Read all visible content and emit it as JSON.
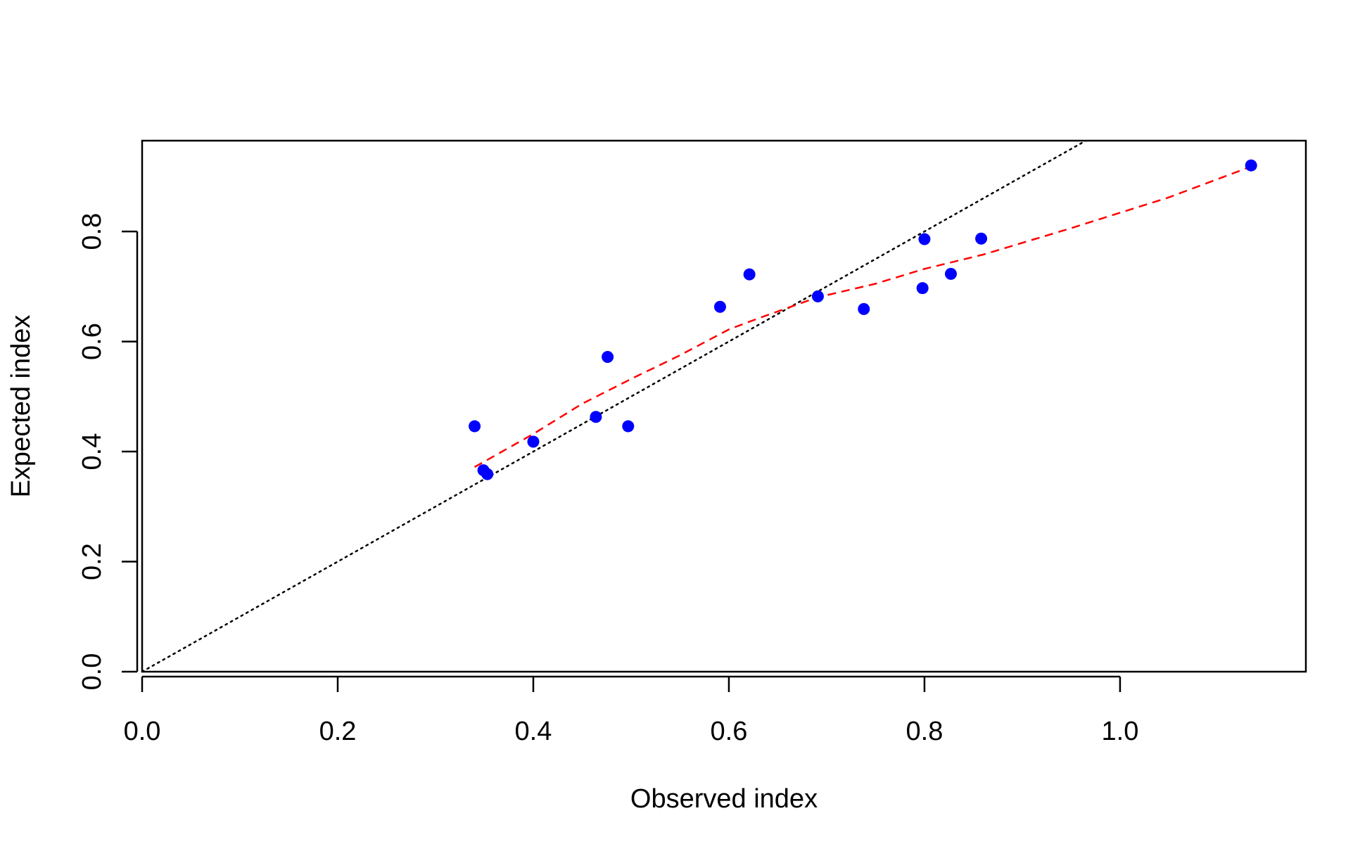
{
  "chart_data": {
    "type": "scatter",
    "title": "",
    "xlabel": "Observed index",
    "ylabel": "Expected index",
    "xlim": [
      0,
      1.19
    ],
    "ylim": [
      0,
      0.965
    ],
    "xticks": [
      0.0,
      0.2,
      0.4,
      0.6,
      0.8,
      1.0
    ],
    "xtick_labels": [
      "0.0",
      "0.2",
      "0.4",
      "0.6",
      "0.8",
      "1.0"
    ],
    "yticks": [
      0.0,
      0.2,
      0.4,
      0.6,
      0.8
    ],
    "ytick_labels": [
      "0.0",
      "0.2",
      "0.4",
      "0.6",
      "0.8"
    ],
    "grid": false,
    "legend": "none",
    "colors": {
      "points": "#0000ff",
      "smooth_line": "#ff0000",
      "reference_line": "#000000"
    },
    "points": [
      {
        "x": 0.34,
        "y": 0.446
      },
      {
        "x": 0.349,
        "y": 0.366
      },
      {
        "x": 0.353,
        "y": 0.359
      },
      {
        "x": 0.4,
        "y": 0.418
      },
      {
        "x": 0.464,
        "y": 0.463
      },
      {
        "x": 0.476,
        "y": 0.572
      },
      {
        "x": 0.497,
        "y": 0.446
      },
      {
        "x": 0.591,
        "y": 0.663
      },
      {
        "x": 0.621,
        "y": 0.722
      },
      {
        "x": 0.691,
        "y": 0.682
      },
      {
        "x": 0.738,
        "y": 0.659
      },
      {
        "x": 0.798,
        "y": 0.697
      },
      {
        "x": 0.8,
        "y": 0.786
      },
      {
        "x": 0.827,
        "y": 0.723
      },
      {
        "x": 0.858,
        "y": 0.787
      },
      {
        "x": 1.134,
        "y": 0.92
      }
    ],
    "reference_line": {
      "slope": 1,
      "intercept": 0,
      "style": "dotted"
    },
    "smooth_line": {
      "style": "dashed",
      "points": [
        {
          "x": 0.34,
          "y": 0.372
        },
        {
          "x": 0.4,
          "y": 0.432
        },
        {
          "x": 0.45,
          "y": 0.487
        },
        {
          "x": 0.5,
          "y": 0.532
        },
        {
          "x": 0.55,
          "y": 0.575
        },
        {
          "x": 0.6,
          "y": 0.622
        },
        {
          "x": 0.63,
          "y": 0.642
        },
        {
          "x": 0.69,
          "y": 0.68
        },
        {
          "x": 0.75,
          "y": 0.705
        },
        {
          "x": 0.8,
          "y": 0.732
        },
        {
          "x": 0.86,
          "y": 0.758
        },
        {
          "x": 0.95,
          "y": 0.806
        },
        {
          "x": 1.05,
          "y": 0.862
        },
        {
          "x": 1.134,
          "y": 0.918
        }
      ]
    }
  }
}
